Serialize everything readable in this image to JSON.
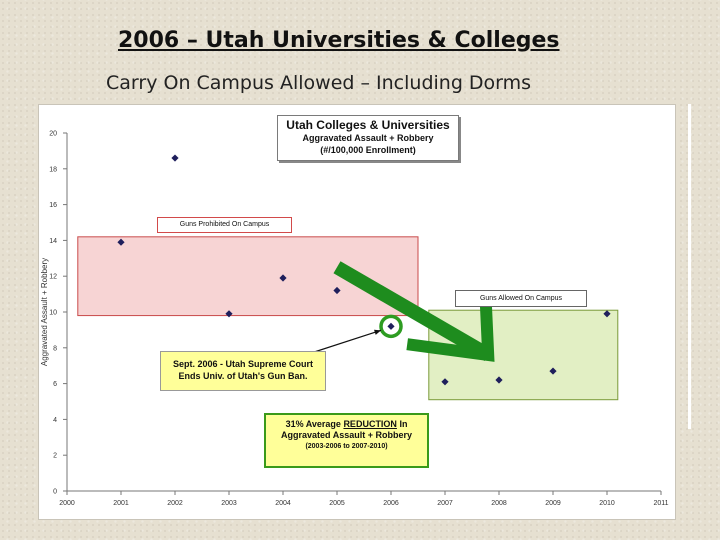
{
  "slide": {
    "title": "2006 – Utah Universities & Colleges",
    "subtitle": "Carry On Campus Allowed – Including Dorms"
  },
  "overlays": {
    "chart_title_line1": "Utah Colleges & Universities",
    "chart_title_line2": "Aggravated Assault + Robbery",
    "chart_title_line3": "(#/100,000 Enrollment)",
    "prohibited_label": "Guns Prohibited On Campus",
    "allowed_label": "Guns Allowed On Campus",
    "court_line1": "Sept. 2006 - Utah Supreme Court",
    "court_line2": "Ends Univ. of Utah's Gun Ban.",
    "reduction_line1_pre": "31% Average ",
    "reduction_line1_ul": "REDUCTION",
    "reduction_line1_post": " In",
    "reduction_line2": "Aggravated Assault + Robbery",
    "reduction_line3": "(2003-2006 to 2007-2010)"
  },
  "colors": {
    "marker": "#1f1f5c",
    "prohibited_region": "#f7d4d4",
    "prohibited_border": "#c94a4a",
    "allowed_region": "#e2efc4",
    "allowed_border": "#7a9a3a",
    "arrow": "#1e8c1e",
    "highlight_circle": "#2e9c22"
  },
  "chart_data": {
    "type": "scatter",
    "x": [
      2001,
      2002,
      2003,
      2004,
      2005,
      2006,
      2007,
      2008,
      2009,
      2010
    ],
    "y": [
      13.9,
      18.6,
      9.9,
      11.9,
      11.2,
      9.2,
      6.1,
      6.2,
      6.7,
      9.9
    ],
    "xlim": [
      2000,
      2011
    ],
    "ylim": [
      0,
      20
    ],
    "xticks": [
      2000,
      2001,
      2002,
      2003,
      2004,
      2005,
      2006,
      2007,
      2008,
      2009,
      2010,
      2011
    ],
    "yticks": [
      0,
      2,
      4,
      6,
      8,
      10,
      12,
      14,
      16,
      18,
      20
    ],
    "title": "Utah Colleges & Universities",
    "xlabel": "",
    "ylabel": "Aggravated Assault + Robbery",
    "grid": false,
    "regions": [
      {
        "label": "Guns Prohibited On Campus",
        "x_range": [
          2000.2,
          2006.5
        ],
        "y_range": [
          9.8,
          14.2
        ]
      },
      {
        "label": "Guns Allowed On Campus",
        "x_range": [
          2006.7,
          2010.2
        ],
        "y_range": [
          5.1,
          10.1
        ]
      }
    ],
    "highlighted_x": 2006
  }
}
